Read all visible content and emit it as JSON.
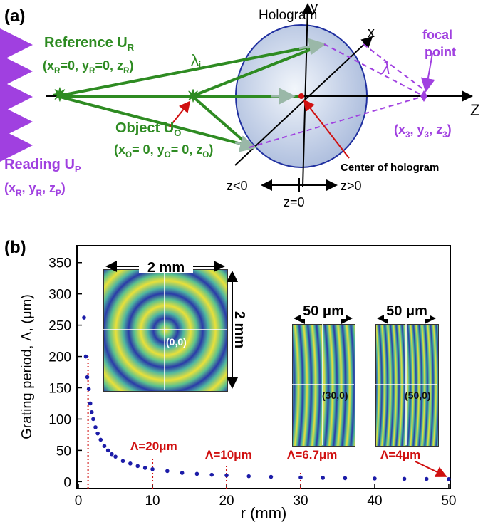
{
  "diagram": {
    "panel_label": "(a)",
    "hologram": "Hologram",
    "axis_y": "y",
    "axis_x": "x",
    "axis_z": "Z",
    "reference": [
      "Reference U",
      "R"
    ],
    "reference_coords": [
      "(x",
      "R",
      "=0, y",
      "R",
      "=0, z",
      "R",
      ")"
    ],
    "lambda_i": [
      "λ",
      "i"
    ],
    "object": [
      "Object U",
      "O"
    ],
    "object_coords": [
      "(x",
      "O",
      "= 0, y",
      "O",
      "= 0, z",
      "O",
      ")"
    ],
    "reading": [
      "Reading U",
      "P"
    ],
    "reading_coords": [
      "(x",
      "R",
      ", y",
      "R",
      ", z",
      "P",
      ")"
    ],
    "focal": [
      "focal",
      "point"
    ],
    "lambda": "λ",
    "focal_coords": [
      "(x",
      "3",
      ", y",
      "3",
      ", z",
      "3",
      ")"
    ],
    "center": "Center of hologram",
    "z_neg": "z<0",
    "z_pos": "z>0",
    "z_zero": "z=0"
  },
  "chart_data": {
    "type": "scatter",
    "panel_label": "(b)",
    "x_label": "r (mm)",
    "y_label": "Grating period, Λ, (μm)",
    "color": "#1c1ca8",
    "x": [
      0.76,
      1.0,
      1.2,
      1.4,
      1.6,
      1.8,
      2.0,
      2.3,
      2.6,
      3.0,
      3.5,
      4.0,
      4.5,
      5.0,
      6.0,
      7.0,
      8.0,
      9.0,
      10,
      12,
      14,
      16,
      18,
      20,
      23,
      26,
      30,
      33,
      36,
      40,
      44,
      47,
      50
    ],
    "values": [
      262,
      200,
      167,
      148,
      125,
      111,
      100,
      87,
      77,
      67,
      57,
      50,
      44,
      40,
      33,
      29,
      25,
      22,
      20,
      17,
      14,
      12.5,
      11,
      10,
      8.7,
      7.7,
      6.7,
      6.1,
      5.6,
      5,
      4.5,
      4.3,
      4
    ],
    "xlim": [
      -0.2,
      50.2
    ],
    "ylim": [
      -11,
      377
    ],
    "xticks": [
      0,
      10,
      20,
      30,
      40,
      50
    ],
    "yticks": [
      0,
      50,
      100,
      150,
      200,
      250,
      300,
      350
    ],
    "annotations": [
      {
        "x": 1.3,
        "y": 200
      },
      {
        "text": "Λ=20μm",
        "x": 10,
        "y": 40
      },
      {
        "text": "Λ=10μm",
        "x": 20,
        "y": 28
      },
      {
        "text": "Λ=6.7μm",
        "x": 30,
        "y": 14
      },
      {
        "text": "Λ=4μm",
        "x": 50,
        "y": 4
      }
    ],
    "insets": [
      {
        "size": "2 mm",
        "size2": "2 mm",
        "origin": "(0,0)"
      },
      {
        "size": "50 μm",
        "origin": "(30,0)"
      },
      {
        "size": "50 μm",
        "origin": "(50,0)"
      }
    ]
  }
}
